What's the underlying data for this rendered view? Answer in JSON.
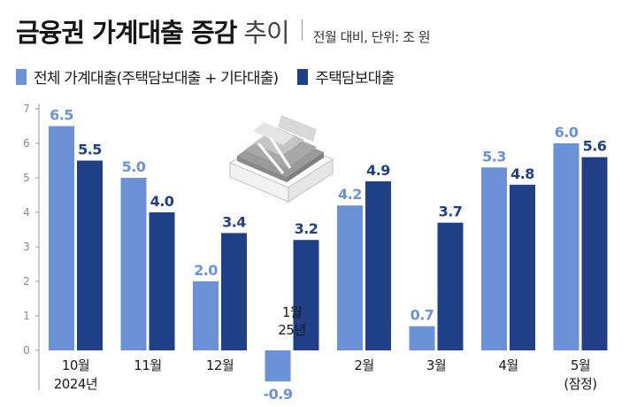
{
  "header": {
    "title": "금융권 가계대출 증감",
    "title_suffix": "추이",
    "subtitle": "전월 대비, 단위: 조 원"
  },
  "colors": {
    "total": "#6b92d6",
    "mortgage": "#1f3f86",
    "axis": "#9a9a9a",
    "tick": "#8a8a8a"
  },
  "icon": "money-stack-icon",
  "chart_data": {
    "type": "bar",
    "categories": [
      "10월\n2024년",
      "11월",
      "12월",
      "1월\n25년",
      "2월",
      "3월",
      "4월",
      "5월\n(잠정)"
    ],
    "series": [
      {
        "name": "전체 가계대출(주택담보대출 + 기타대출)",
        "values": [
          6.5,
          5.0,
          2.0,
          -0.9,
          4.2,
          0.7,
          5.3,
          6.0
        ]
      },
      {
        "name": "주택담보대출",
        "values": [
          5.5,
          4.0,
          3.4,
          3.2,
          4.9,
          3.7,
          4.8,
          5.6
        ]
      }
    ],
    "data_labels": [
      [
        "6.5",
        "5.0",
        "2.0",
        "-0.9",
        "4.2",
        "0.7",
        "5.3",
        "6.0"
      ],
      [
        "5.5",
        "4.0",
        "3.4",
        "3.2",
        "4.9",
        "3.7",
        "4.8",
        "5.6"
      ]
    ],
    "yticks": [
      0,
      1,
      2,
      3,
      4,
      5,
      6,
      7
    ],
    "ylim": [
      -1,
      7
    ],
    "grid": false,
    "legend_position": "top-left"
  }
}
